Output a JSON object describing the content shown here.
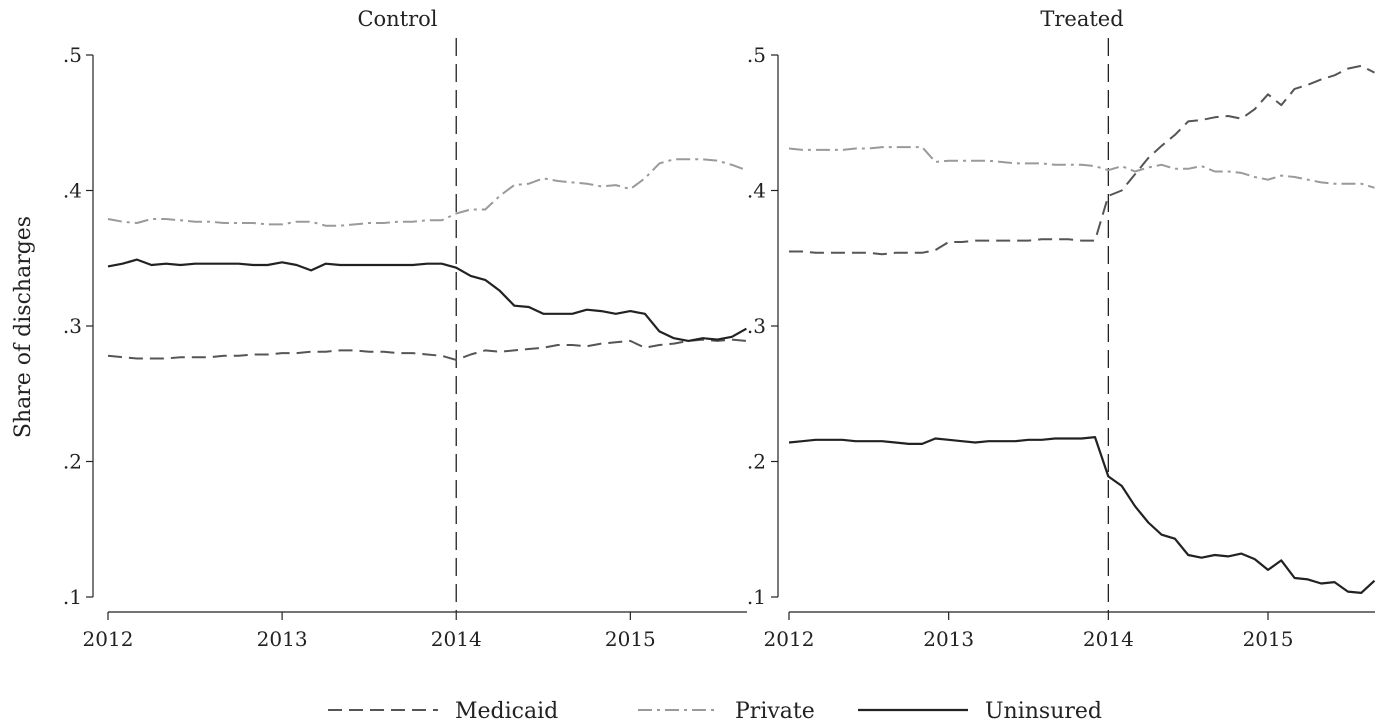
{
  "ylabel": "Share of discharges",
  "legend": [
    {
      "name": "Medicaid",
      "style": "dash",
      "color": "#555555"
    },
    {
      "name": "Private",
      "style": "dashdot",
      "color": "#9a9a9a"
    },
    {
      "name": "Uninsured",
      "style": "solid",
      "color": "#222222"
    }
  ],
  "chart_data": [
    {
      "type": "line",
      "title": "Control",
      "xlim": [
        2012,
        2015.67
      ],
      "ylim": [
        0.1,
        0.5
      ],
      "xticks": [
        2012,
        2013,
        2014,
        2015
      ],
      "yticks": [
        0.1,
        0.2,
        0.3,
        0.4,
        0.5
      ],
      "ytick_labels": [
        ".1",
        ".2",
        ".3",
        ".4",
        ".5"
      ],
      "vline": 2014,
      "x_start": 2012,
      "x_step_months": 1,
      "series": [
        {
          "name": "Medicaid",
          "values": [
            0.278,
            0.277,
            0.276,
            0.276,
            0.276,
            0.277,
            0.277,
            0.277,
            0.278,
            0.278,
            0.279,
            0.279,
            0.28,
            0.28,
            0.281,
            0.281,
            0.282,
            0.282,
            0.281,
            0.281,
            0.28,
            0.28,
            0.279,
            0.278,
            0.275,
            0.279,
            0.282,
            0.281,
            0.282,
            0.283,
            0.284,
            0.286,
            0.286,
            0.285,
            0.287,
            0.288,
            0.289,
            0.284,
            0.286,
            0.287,
            0.289,
            0.29,
            0.289,
            0.29,
            0.289
          ]
        },
        {
          "name": "Private",
          "values": [
            0.379,
            0.377,
            0.376,
            0.379,
            0.379,
            0.378,
            0.377,
            0.377,
            0.376,
            0.376,
            0.376,
            0.375,
            0.375,
            0.377,
            0.377,
            0.374,
            0.374,
            0.375,
            0.376,
            0.376,
            0.377,
            0.377,
            0.378,
            0.378,
            0.383,
            0.386,
            0.386,
            0.396,
            0.404,
            0.405,
            0.409,
            0.407,
            0.406,
            0.405,
            0.403,
            0.404,
            0.401,
            0.409,
            0.42,
            0.423,
            0.423,
            0.423,
            0.422,
            0.419,
            0.415
          ]
        },
        {
          "name": "Uninsured",
          "values": [
            0.344,
            0.346,
            0.349,
            0.345,
            0.346,
            0.345,
            0.346,
            0.346,
            0.346,
            0.346,
            0.345,
            0.345,
            0.347,
            0.345,
            0.341,
            0.346,
            0.345,
            0.345,
            0.345,
            0.345,
            0.345,
            0.345,
            0.346,
            0.346,
            0.343,
            0.337,
            0.334,
            0.326,
            0.315,
            0.314,
            0.309,
            0.309,
            0.309,
            0.312,
            0.311,
            0.309,
            0.311,
            0.309,
            0.296,
            0.291,
            0.289,
            0.291,
            0.29,
            0.292,
            0.298
          ]
        }
      ]
    },
    {
      "type": "line",
      "title": "Treated",
      "xlim": [
        2012,
        2015.67
      ],
      "ylim": [
        0.1,
        0.5
      ],
      "xticks": [
        2012,
        2013,
        2014,
        2015
      ],
      "yticks": [
        0.1,
        0.2,
        0.3,
        0.4,
        0.5
      ],
      "ytick_labels": [
        ".1",
        ".2",
        ".3",
        ".4",
        ".5"
      ],
      "vline": 2014,
      "x_start": 2012,
      "x_step_months": 1,
      "series": [
        {
          "name": "Medicaid",
          "values": [
            0.355,
            0.355,
            0.354,
            0.354,
            0.354,
            0.354,
            0.354,
            0.353,
            0.354,
            0.354,
            0.354,
            0.356,
            0.362,
            0.362,
            0.363,
            0.363,
            0.363,
            0.363,
            0.363,
            0.364,
            0.364,
            0.364,
            0.363,
            0.363,
            0.396,
            0.4,
            0.412,
            0.424,
            0.433,
            0.441,
            0.451,
            0.452,
            0.454,
            0.455,
            0.453,
            0.46,
            0.471,
            0.463,
            0.475,
            0.478,
            0.482,
            0.485,
            0.49,
            0.492,
            0.487
          ]
        },
        {
          "name": "Private",
          "values": [
            0.431,
            0.43,
            0.43,
            0.43,
            0.43,
            0.431,
            0.431,
            0.432,
            0.432,
            0.432,
            0.432,
            0.421,
            0.422,
            0.422,
            0.422,
            0.422,
            0.421,
            0.42,
            0.42,
            0.42,
            0.419,
            0.419,
            0.419,
            0.418,
            0.415,
            0.418,
            0.414,
            0.417,
            0.419,
            0.416,
            0.416,
            0.418,
            0.414,
            0.414,
            0.413,
            0.41,
            0.408,
            0.411,
            0.41,
            0.408,
            0.406,
            0.405,
            0.405,
            0.405,
            0.402
          ]
        },
        {
          "name": "Uninsured",
          "values": [
            0.214,
            0.215,
            0.216,
            0.216,
            0.216,
            0.215,
            0.215,
            0.215,
            0.214,
            0.213,
            0.213,
            0.217,
            0.216,
            0.215,
            0.214,
            0.215,
            0.215,
            0.215,
            0.216,
            0.216,
            0.217,
            0.217,
            0.217,
            0.218,
            0.189,
            0.182,
            0.167,
            0.155,
            0.146,
            0.143,
            0.131,
            0.129,
            0.131,
            0.13,
            0.132,
            0.128,
            0.12,
            0.127,
            0.114,
            0.113,
            0.11,
            0.111,
            0.104,
            0.103,
            0.112
          ]
        }
      ]
    }
  ]
}
